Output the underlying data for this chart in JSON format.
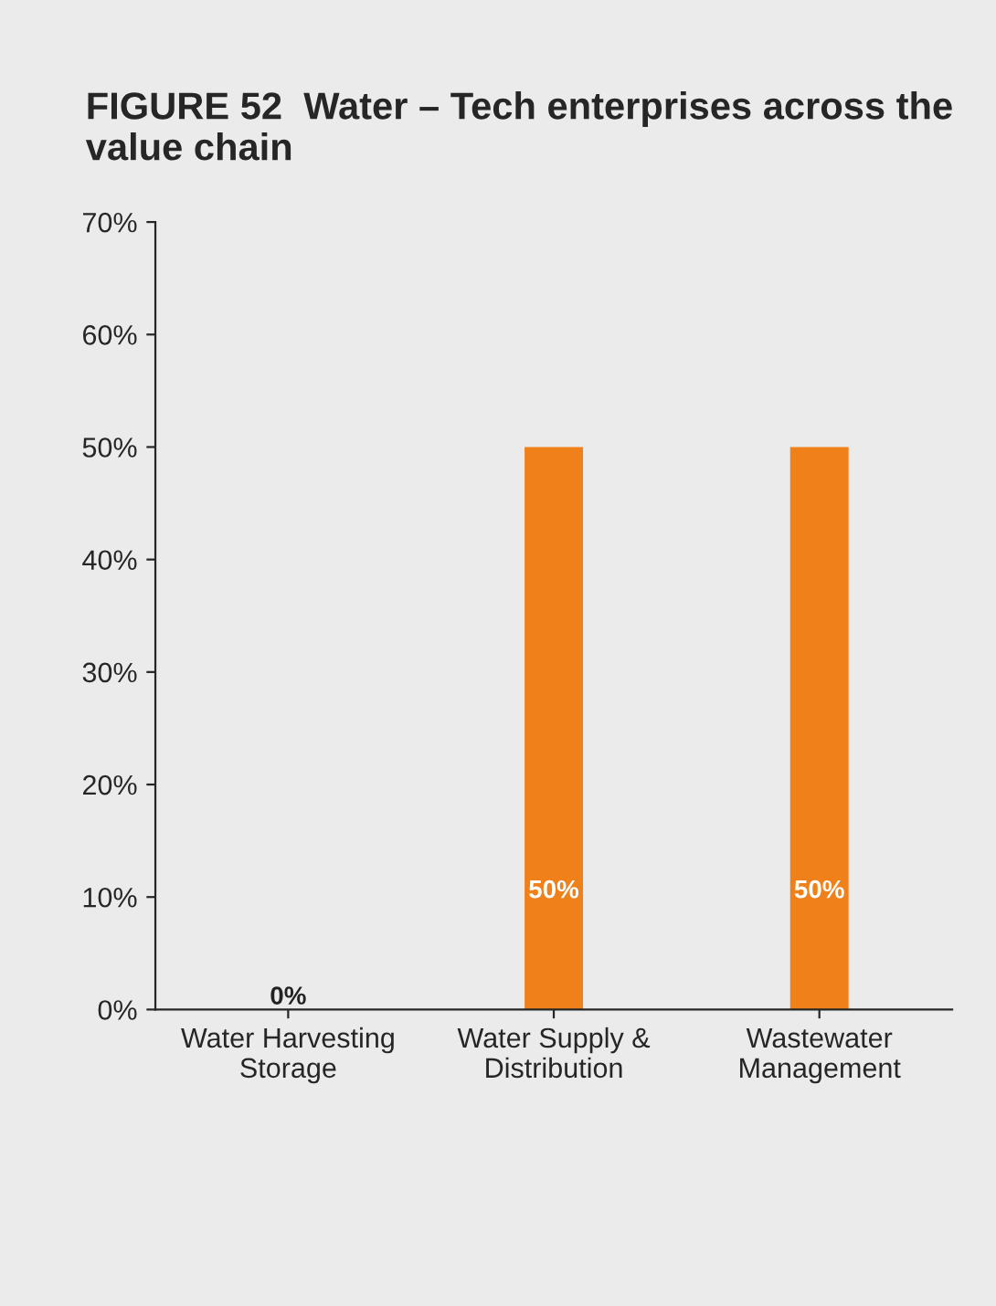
{
  "chart_data": {
    "type": "bar",
    "title": "FIGURE 52  Water – Tech enterprises across the value chain",
    "categories": [
      "Water Harvesting\nStorage",
      "Water Supply &\nDistribution",
      "Wastewater\nManagement"
    ],
    "values": [
      0,
      50,
      50
    ],
    "color": "#f0811a",
    "value_labels": [
      "0%",
      "50%",
      "50%"
    ],
    "ylim": [
      0,
      70
    ],
    "yticks": [
      {
        "value": 0,
        "label": "0%"
      },
      {
        "value": 10,
        "label": "10%"
      },
      {
        "value": 20,
        "label": "20%"
      },
      {
        "value": 30,
        "label": "30%"
      },
      {
        "value": 40,
        "label": "40%"
      },
      {
        "value": 50,
        "label": "50%"
      },
      {
        "value": 60,
        "label": "60%"
      },
      {
        "value": 70,
        "label": "70%"
      }
    ],
    "grid": false
  }
}
